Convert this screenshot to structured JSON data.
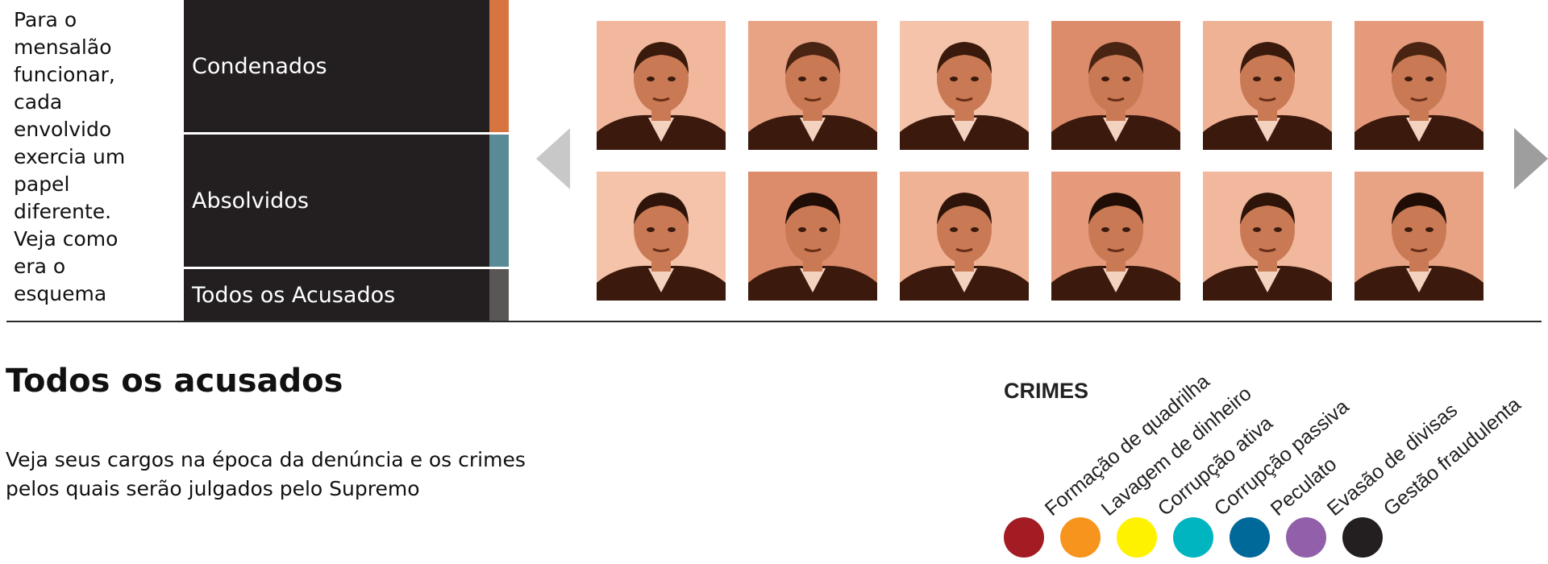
{
  "intro": {
    "lines": [
      "Para o",
      "mensalão",
      "funcionar,",
      "cada",
      "envolvido",
      "exercia um",
      "papel",
      "diferente.",
      "Veja como",
      "era o",
      "esquema"
    ]
  },
  "menu": {
    "items": [
      {
        "label": "Condenados",
        "color": "#d87440"
      },
      {
        "label": "Absolvidos",
        "color": "#5a8a95"
      },
      {
        "label": "Todos os Acusados",
        "color": "#5a5656"
      }
    ]
  },
  "carousel": {
    "prev_icon": "chevron-left-icon",
    "next_icon": "chevron-right-icon",
    "photo_tint": "#c26a48",
    "photo_count": 12
  },
  "section": {
    "title": "Todos os acusados",
    "subtitle_lines": [
      "Veja seus cargos na época da denúncia e os crimes",
      "pelos quais serão julgados pelo Supremo"
    ]
  },
  "crimes": {
    "heading": "CRIMES",
    "items": [
      {
        "label": "Formação de quadrilha",
        "color": "#a31c24"
      },
      {
        "label": "Lavagem de dinheiro",
        "color": "#f7941d"
      },
      {
        "label": "Corrupção ativa",
        "color": "#fff200"
      },
      {
        "label": "Corrupção passiva",
        "color": "#00b4c0"
      },
      {
        "label": "Peculato",
        "color": "#00699a"
      },
      {
        "label": "Evasão de divisas",
        "color": "#9260aa"
      },
      {
        "label": "Gestão fraudulenta",
        "color": "#231f20"
      }
    ]
  }
}
